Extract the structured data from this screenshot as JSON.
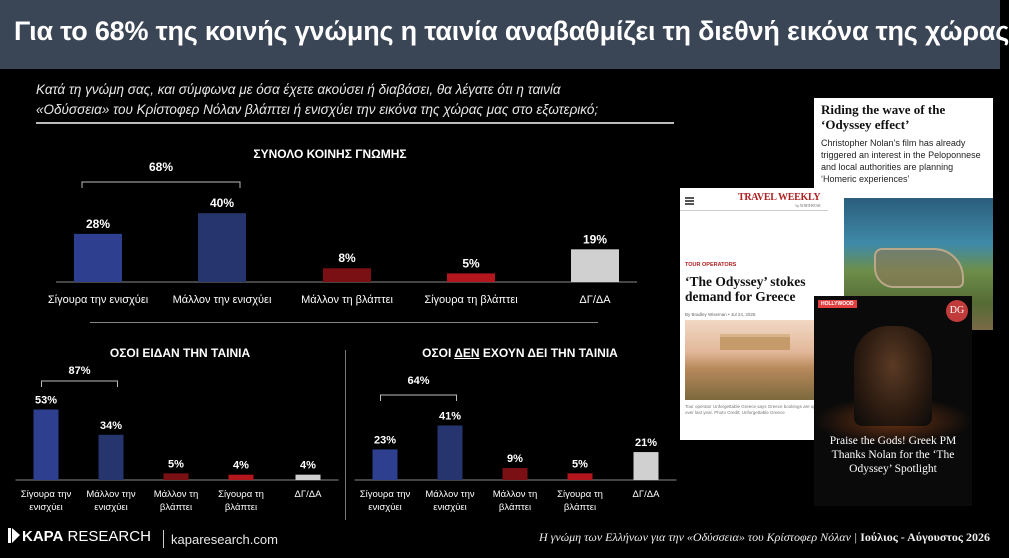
{
  "header": {
    "title": "Για το 68% της κοινής γνώμης η ταινία αναβαθμίζει τη διεθνή εικόνα της χώρας"
  },
  "question": {
    "line1": "Κατά τη γνώμη σας, και σύμφωνα με όσα έχετε ακούσει ή διαβάσει, θα λέγατε ότι η ταινία",
    "line2": "«Οδύσσεια» του Κρίστοφερ Νόλαν βλάπτει ή ενισχύει την εικόνα της χώρας μας στο εξωτερικό;"
  },
  "colors": {
    "strong_positive": "#2e3f8f",
    "positive": "#26356e",
    "negative": "#7a0f14",
    "strong_negative": "#b3171d",
    "dk": "#d0d0d0",
    "background": "#000000",
    "header": "#3a4556"
  },
  "chart_data": [
    {
      "type": "bar",
      "title": "ΣΥΝΟΛΟ ΚΟΙΝΗΣ ΓΝΩΜΗΣ",
      "categories": [
        "Σίγουρα την ενισχύει",
        "Μάλλον την ενισχύει",
        "Μάλλον τη βλάπτει",
        "Σίγουρα τη βλάπτει",
        "ΔΓ/ΔΑ"
      ],
      "values": [
        28,
        40,
        8,
        5,
        19
      ],
      "value_labels": [
        "28%",
        "40%",
        "8%",
        "5%",
        "19%"
      ],
      "bracket": {
        "from": 0,
        "to": 1,
        "label": "68%"
      }
    },
    {
      "type": "bar",
      "title": "ΟΣΟΙ ΕΙΔΑΝ ΤΗΝ ΤΑΙΝΙΑ",
      "categories": [
        "Σίγουρα την ενισχύει",
        "Μάλλον την ενισχύει",
        "Μάλλον τη βλάπτει",
        "Σίγουρα τη βλάπτει",
        "ΔΓ/ΔΑ"
      ],
      "category_lines": [
        [
          "Σίγουρα την",
          "ενισχύει"
        ],
        [
          "Μάλλον την",
          "ενισχύει"
        ],
        [
          "Μάλλον τη",
          "βλάπτει"
        ],
        [
          "Σίγουρα τη",
          "βλάπτει"
        ],
        [
          "ΔΓ/ΔΑ"
        ]
      ],
      "values": [
        53,
        34,
        5,
        4,
        4
      ],
      "value_labels": [
        "53%",
        "34%",
        "5%",
        "4%",
        "4%"
      ],
      "bracket": {
        "from": 0,
        "to": 1,
        "label": "87%"
      }
    },
    {
      "type": "bar",
      "title_pre": "ΟΣΟΙ ",
      "title_em": "ΔΕΝ",
      "title_post": " ΕΧΟΥΝ ΔΕΙ ΤΗΝ ΤΑΙΝΙΑ",
      "categories": [
        "Σίγουρα την ενισχύει",
        "Μάλλον την ενισχύει",
        "Μάλλον τη βλάπτει",
        "Σίγουρα τη βλάπτει",
        "ΔΓ/ΔΑ"
      ],
      "category_lines": [
        [
          "Σίγουρα την",
          "ενισχύει"
        ],
        [
          "Μάλλον την",
          "ενισχύει"
        ],
        [
          "Μάλλον τη",
          "βλάπτει"
        ],
        [
          "Σίγουρα τη",
          "βλάπτει"
        ],
        [
          "ΔΓ/ΔΑ"
        ]
      ],
      "values": [
        23,
        41,
        9,
        5,
        21
      ],
      "value_labels": [
        "23%",
        "41%",
        "9%",
        "5%",
        "21%"
      ],
      "bracket": {
        "from": 0,
        "to": 1,
        "label": "64%"
      }
    }
  ],
  "clippings": {
    "c1": {
      "headline": "Riding the wave of the ‘Odyssey effect’",
      "body": "Christopher Nolan’s film has already triggered an interest in the Peloponnese and local authorities are planning ‘Homeric experiences’"
    },
    "c2": {
      "logo": "TRAVEL WEEKLY",
      "logo_sub": "by NORTHSTAR",
      "tag": "TOUR OPERATORS",
      "headline": "‘The Odyssey’ stokes demand for Greece",
      "meta": "By Bradley Wiseman  •  Jul 24, 2026",
      "caption": "Tour operator Unforgettable Greece says Greece bookings are up over last year. Photo Credit: Unforgettable Greece"
    },
    "c3": {
      "badge": "HOLLYWOOD",
      "logo": "DG",
      "headline": "Praise the Gods! Greek PM Thanks Nolan for the ‘The Odyssey’ Spotlight"
    }
  },
  "footer": {
    "brand_bold": "KAPA",
    "brand_light": " RESEARCH",
    "url": "kaparesearch.com",
    "right_text": "Η γνώμη των Ελλήνων για την «Οδύσσεια» του Κρίστοφερ Νόλαν | ",
    "right_date": "Ιούλιος - Αύγουστος 2026"
  }
}
